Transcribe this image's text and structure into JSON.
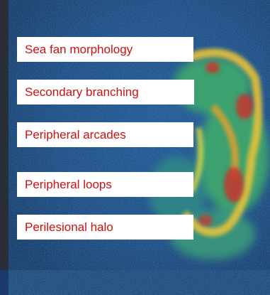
{
  "labels": [
    "Sea fan morphology",
    "Secondary branching",
    "Peripheral arcades",
    "Peripheral loops",
    "Perilesional halo"
  ],
  "label_text_color": "#cc1111",
  "label_background": "#ffffff"
}
